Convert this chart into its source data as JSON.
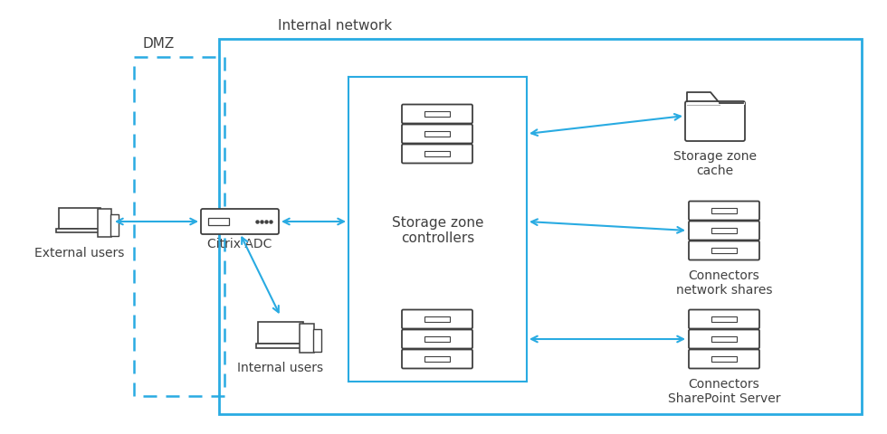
{
  "bg_color": "#ffffff",
  "arrow_color": "#29abe2",
  "box_color": "#29abe2",
  "line_color": "#404040",
  "dashed_color": "#29abe2",
  "text_color": "#404040",
  "title_dmz": "DMZ",
  "title_internal": "Internal network",
  "label_external": "External users",
  "label_adc": "Citrix ADC",
  "label_internal": "Internal users",
  "label_szc": "Storage zone\ncontrollers",
  "label_cache": "Storage zone\ncache",
  "label_connectors_ns": "Connectors\nnetwork shares",
  "label_connectors_sp": "Connectors\nSharePoint Server",
  "figsize": [
    9.8,
    4.8
  ],
  "dpi": 100
}
